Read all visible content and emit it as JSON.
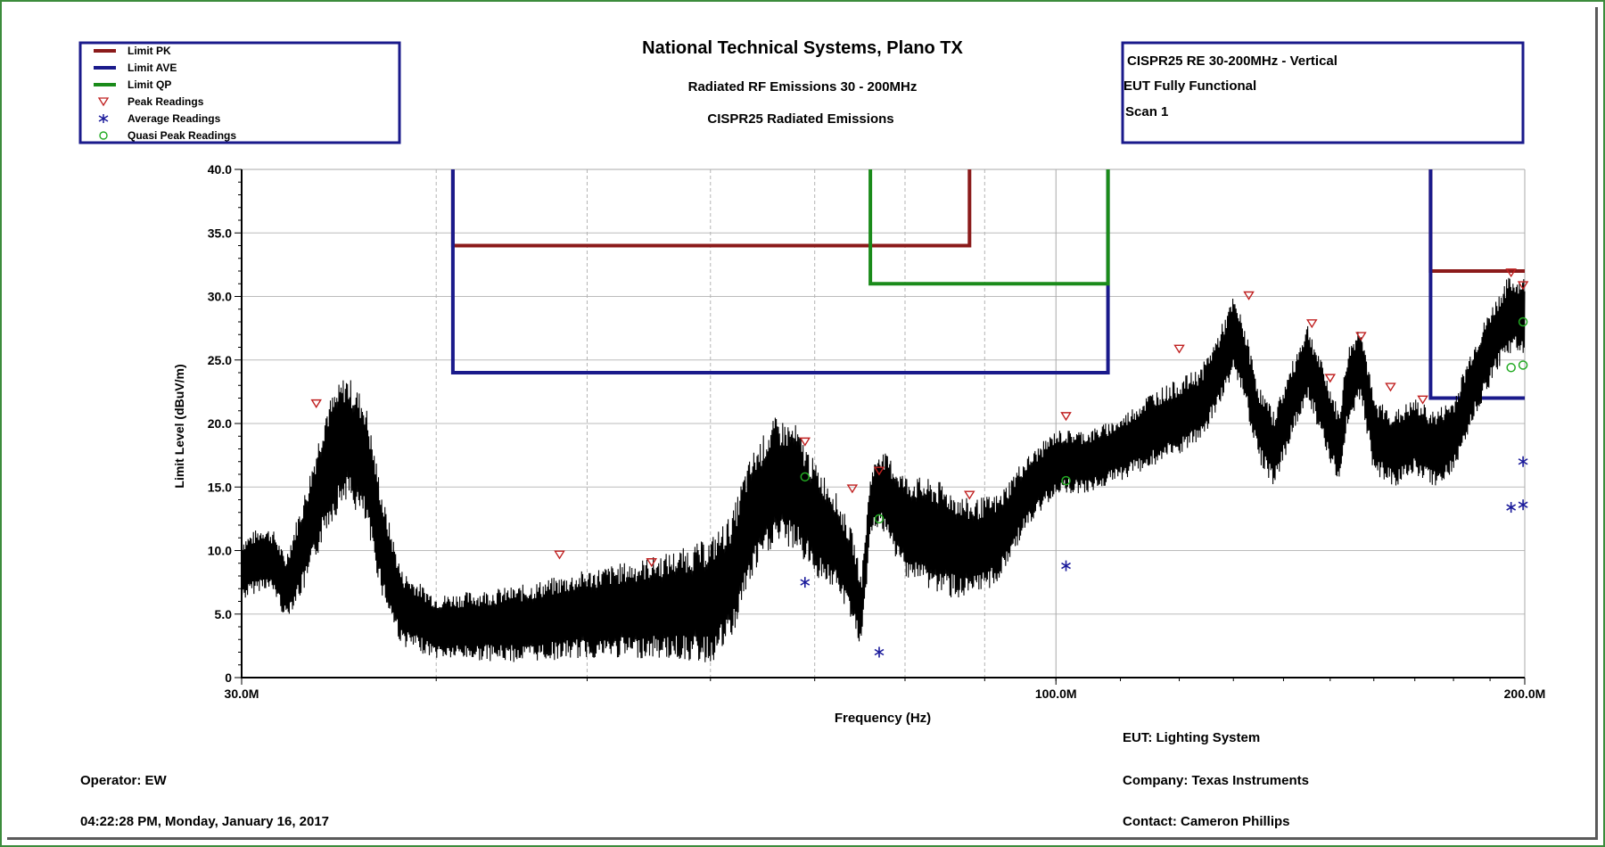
{
  "header": {
    "title": "National Technical Systems, Plano TX",
    "subtitle1": "Radiated RF Emissions 30 - 200MHz",
    "subtitle2": "CISPR25 Radiated Emissions"
  },
  "legend": [
    {
      "label": "Limit PK",
      "kind": "line",
      "color": "#8b1a1a"
    },
    {
      "label": "Limit AVE",
      "kind": "line",
      "color": "#1a1a8b"
    },
    {
      "label": "Limit QP",
      "kind": "line",
      "color": "#1a8b1a"
    },
    {
      "label": "Peak Readings",
      "kind": "triangle",
      "color": "#c02020"
    },
    {
      "label": "Average Readings",
      "kind": "asterisk",
      "color": "#1a1a9b"
    },
    {
      "label": "Quasi Peak Readings",
      "kind": "circle",
      "color": "#22aa22"
    }
  ],
  "info_box": [
    "CISPR25 RE 30-200MHz - Vertical",
    "EUT Fully Functional",
    "Scan 1"
  ],
  "footer": {
    "operator": "Operator: EW",
    "timestamp": "04:22:28 PM, Monday, January 16, 2017",
    "eut": "EUT: Lighting System",
    "company": "Company: Texas Instruments",
    "contact": "Contact: Cameron Phillips"
  },
  "chart_data": {
    "type": "line",
    "xlabel": "Frequency (Hz)",
    "ylabel": "Limit Level (dBuV/m)",
    "x_scale": "log",
    "xlim": [
      30,
      200
    ],
    "ylim": [
      0,
      40
    ],
    "x_ticks": [
      {
        "value": 30,
        "label": "30.0M"
      },
      {
        "value": 100,
        "label": "100.0M"
      },
      {
        "value": 200,
        "label": "200.0M"
      }
    ],
    "y_ticks": [
      {
        "value": 0,
        "label": "0"
      },
      {
        "value": 5,
        "label": "5.0"
      },
      {
        "value": 10,
        "label": "10.0"
      },
      {
        "value": 15,
        "label": "15.0"
      },
      {
        "value": 20,
        "label": "20.0"
      },
      {
        "value": 25,
        "label": "25.0"
      },
      {
        "value": 30,
        "label": "30.0"
      },
      {
        "value": 35,
        "label": "35.0"
      },
      {
        "value": 40,
        "label": "40.0"
      }
    ],
    "minor_x_gridlines": [
      40,
      50,
      60,
      70,
      80,
      90
    ],
    "grid": true,
    "limits": {
      "Limit PK": [
        {
          "x": [
            41,
            41,
            88,
            88
          ],
          "y": [
            40,
            34,
            34,
            40
          ]
        },
        {
          "x": [
            174,
            174,
            200
          ],
          "y": [
            40,
            32,
            32
          ]
        }
      ],
      "Limit AVE": [
        {
          "x": [
            41,
            41,
            108,
            108
          ],
          "y": [
            40,
            24,
            24,
            40
          ]
        },
        {
          "x": [
            174,
            174,
            200
          ],
          "y": [
            40,
            22,
            22
          ]
        }
      ],
      "Limit QP": [
        {
          "x": [
            76,
            76,
            108,
            108
          ],
          "y": [
            40,
            31,
            31,
            40
          ]
        }
      ]
    },
    "measurement_envelope": {
      "x": [
        30,
        31,
        31.5,
        32,
        33,
        34,
        35,
        36,
        37,
        38,
        40,
        45,
        50,
        55,
        58,
        60,
        62,
        63,
        64,
        66,
        68,
        70,
        72,
        74,
        75,
        76,
        77,
        78,
        80,
        84,
        88,
        92,
        95,
        100,
        105,
        110,
        115,
        120,
        124,
        127,
        130,
        132,
        135,
        138,
        142,
        145,
        149,
        152,
        154,
        157,
        160,
        165,
        170,
        175,
        180,
        185,
        190,
        195,
        200
      ],
      "y": [
        8.5,
        9.5,
        9.0,
        7.0,
        11.0,
        16.5,
        19.0,
        17.0,
        10.0,
        5.5,
        4.0,
        4.2,
        5.0,
        5.5,
        5.8,
        6.0,
        8.0,
        11.0,
        13.0,
        15.5,
        15.0,
        12.5,
        11.0,
        8.0,
        5.0,
        13.5,
        15.0,
        14.0,
        12.0,
        11.0,
        10.0,
        11.0,
        14.0,
        17.0,
        17.0,
        18.0,
        19.5,
        20.5,
        21.5,
        24.0,
        27.0,
        25.0,
        20.0,
        18.0,
        22.0,
        25.0,
        21.0,
        18.0,
        23.0,
        25.0,
        19.0,
        18.0,
        19.0,
        18.0,
        19.0,
        23.0,
        26.0,
        28.5,
        28.5
      ],
      "ripple": [
        2.5,
        2.5,
        2.5,
        2.5,
        4,
        5,
        5,
        5,
        4,
        3,
        2.5,
        3,
        3.5,
        4,
        4.5,
        5,
        5,
        5,
        5,
        5,
        5,
        4.5,
        4,
        3.5,
        3,
        2.5,
        3,
        3.5,
        4,
        4.5,
        4,
        3.5,
        3,
        2.5,
        2.5,
        2.5,
        3,
        3,
        3,
        3,
        3,
        3,
        3,
        3,
        3,
        3,
        3,
        3,
        3,
        3,
        3,
        3,
        3,
        3,
        3,
        3,
        3,
        3,
        3
      ]
    },
    "peak_readings": {
      "x": [
        33.5,
        48,
        55,
        69,
        74,
        77,
        88,
        101.5,
        120,
        133,
        146,
        150,
        157,
        164,
        172,
        196,
        199.5
      ],
      "y": [
        21.5,
        9.6,
        9.0,
        18.5,
        14.8,
        16.2,
        14.3,
        20.5,
        25.8,
        30.0,
        27.8,
        23.5,
        26.8,
        22.8,
        21.8,
        31.8,
        30.8
      ]
    },
    "average_readings": {
      "x": [
        69,
        77,
        101.5,
        196,
        199.5,
        199.5
      ],
      "y": [
        7.5,
        2.0,
        8.8,
        13.4,
        13.6,
        17.0
      ]
    },
    "quasi_peak_readings": {
      "x": [
        69,
        77,
        101.5,
        196,
        199.5,
        199.5
      ],
      "y": [
        15.8,
        12.5,
        15.5,
        24.4,
        24.6,
        28.0
      ]
    }
  }
}
